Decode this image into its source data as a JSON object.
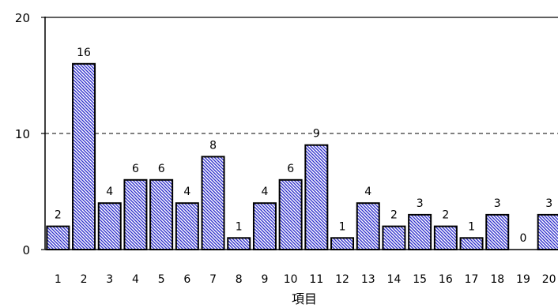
{
  "chart_data": {
    "type": "bar",
    "categories": [
      "1",
      "2",
      "3",
      "4",
      "5",
      "6",
      "7",
      "8",
      "9",
      "10",
      "11",
      "12",
      "13",
      "14",
      "15",
      "16",
      "17",
      "18",
      "19",
      "20"
    ],
    "values": [
      2,
      16,
      4,
      6,
      6,
      4,
      8,
      1,
      4,
      6,
      9,
      1,
      4,
      2,
      3,
      2,
      1,
      3,
      0,
      3
    ],
    "xlabel": "項目",
    "ylabel": "",
    "ylim": [
      0,
      20
    ],
    "yticks": [
      "0",
      "10",
      "20"
    ],
    "gridline_at": 10,
    "grid_style": "dashed",
    "bar_fill": "diagonal-hatch",
    "bar_color": "#3333cc",
    "bar_outline": "#000000"
  }
}
